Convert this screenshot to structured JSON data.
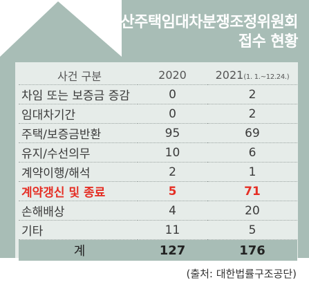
{
  "chart_data": {
    "type": "table",
    "title_line1": "부산주택임대차분쟁조정위원회",
    "title_line2": "접수 현황",
    "header": {
      "category": "사건 구분",
      "col_2020": "2020",
      "col_2021": "2021",
      "col_2021_note": "(1. 1.~12.24.)"
    },
    "rows": [
      {
        "label": "차임 또는 보증금 증감",
        "v2020": "0",
        "v2021": "2",
        "highlight": false
      },
      {
        "label": "임대차기간",
        "v2020": "0",
        "v2021": "2",
        "highlight": false
      },
      {
        "label": "주택/보증금반환",
        "v2020": "95",
        "v2021": "69",
        "highlight": false
      },
      {
        "label": "유지/수선의무",
        "v2020": "10",
        "v2021": "6",
        "highlight": false
      },
      {
        "label": "계약이행/해석",
        "v2020": "2",
        "v2021": "1",
        "highlight": false
      },
      {
        "label": "계약갱신 및 종료",
        "v2020": "5",
        "v2021": "71",
        "highlight": true
      },
      {
        "label": "손해배상",
        "v2020": "4",
        "v2021": "20",
        "highlight": false
      },
      {
        "label": "기타",
        "v2020": "11",
        "v2021": "5",
        "highlight": false
      }
    ],
    "total": {
      "label": "계",
      "v2020": "127",
      "v2021": "176"
    },
    "source": "(출처: 대한법률구조공단)",
    "colors": {
      "house": "#a8bdb6",
      "panel": "#e6ece9",
      "highlight": "#e52f25"
    }
  }
}
